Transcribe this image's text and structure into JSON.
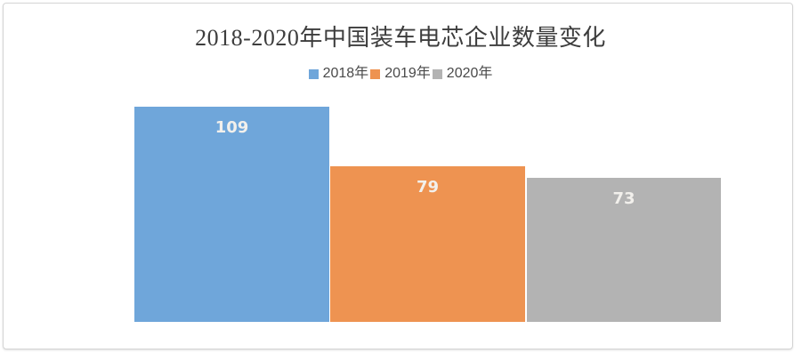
{
  "chart_data": {
    "type": "bar",
    "title": "2018-2020年中国装车电芯企业数量变化",
    "categories": [
      ""
    ],
    "series": [
      {
        "name": "2018年",
        "values": [
          109
        ],
        "color": "#6FA6DA"
      },
      {
        "name": "2019年",
        "values": [
          79
        ],
        "color": "#EE9351"
      },
      {
        "name": "2020年",
        "values": [
          73
        ],
        "color": "#B3B3B3"
      }
    ],
    "ylim": [
      0,
      109
    ],
    "xlabel": "",
    "ylabel": "",
    "grid": false,
    "axes_visible": false,
    "legend_position": "top",
    "data_labels_visible": true,
    "data_label_color": "#F2F0EC",
    "title_color": "#3D3D3D",
    "legend_text_color": "#4A4A4A"
  }
}
